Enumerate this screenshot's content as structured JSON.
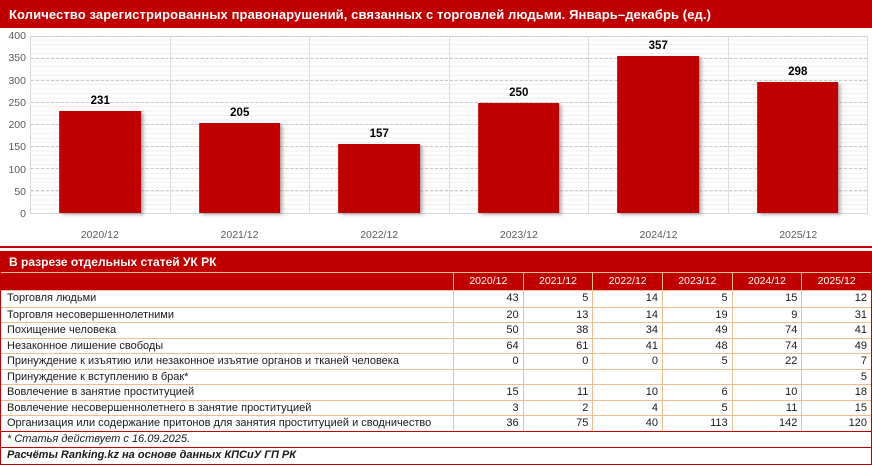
{
  "colors": {
    "accent_red": "#C00000",
    "bar_red": "#C00000",
    "grid_major": "#C9C9C9",
    "grid_minor": "#F0F0F0",
    "axis_text": "#595959",
    "table_border": "#F3BD92",
    "header_text": "#FFFFFF"
  },
  "chart_data": [
    {
      "type": "bar",
      "title": "Количество зарегистрированных правонарушений, связанных с торговлей людьми. Январь–декабрь (ед.)",
      "categories": [
        "2020/12",
        "2021/12",
        "2022/12",
        "2023/12",
        "2024/12",
        "2025/12"
      ],
      "values": [
        231,
        205,
        157,
        250,
        357,
        298
      ],
      "xlabel": "",
      "ylabel": "",
      "ylim": [
        0,
        400
      ],
      "ytick_step": 50,
      "grid": "horizontal major dashed + minor solid",
      "legend": "none",
      "bar_color": "#C00000"
    },
    {
      "type": "table",
      "section_title": "В разрезе отдельных статей УК РК",
      "columns": [
        "2020/12",
        "2021/12",
        "2022/12",
        "2023/12",
        "2024/12",
        "2025/12"
      ],
      "rows": [
        {
          "label": "Торговля людьми",
          "values": [
            "43",
            "5",
            "14",
            "5",
            "15",
            "12"
          ]
        },
        {
          "label": "Торговля несовершеннолетними",
          "values": [
            "20",
            "13",
            "14",
            "19",
            "9",
            "31"
          ]
        },
        {
          "label": "Похищение человека",
          "values": [
            "50",
            "38",
            "34",
            "49",
            "74",
            "41"
          ]
        },
        {
          "label": "Незаконное лишение свободы",
          "values": [
            "64",
            "61",
            "41",
            "48",
            "74",
            "49"
          ]
        },
        {
          "label": "Принуждение к изъятию или незаконное изъятие органов и тканей человека",
          "values": [
            "0",
            "0",
            "0",
            "5",
            "22",
            "7"
          ]
        },
        {
          "label": "Принуждение к вступлению в брак*",
          "values": [
            "",
            "",
            "",
            "",
            "",
            "5"
          ]
        },
        {
          "label": "Вовлечение в занятие проституцией",
          "values": [
            "15",
            "11",
            "10",
            "6",
            "10",
            "18"
          ]
        },
        {
          "label": "Вовлечение несовершеннолетнего в занятие проституцией",
          "values": [
            "3",
            "2",
            "4",
            "5",
            "11",
            "15"
          ]
        },
        {
          "label": "Организация или содержание притонов для занятия проституцией и сводничество",
          "values": [
            "36",
            "75",
            "40",
            "113",
            "142",
            "120"
          ]
        }
      ],
      "footnote": "* Статья действует с 16.09.2025.",
      "source": "Расчёты Ranking.kz на основе данных КПСиУ ГП РК"
    }
  ]
}
